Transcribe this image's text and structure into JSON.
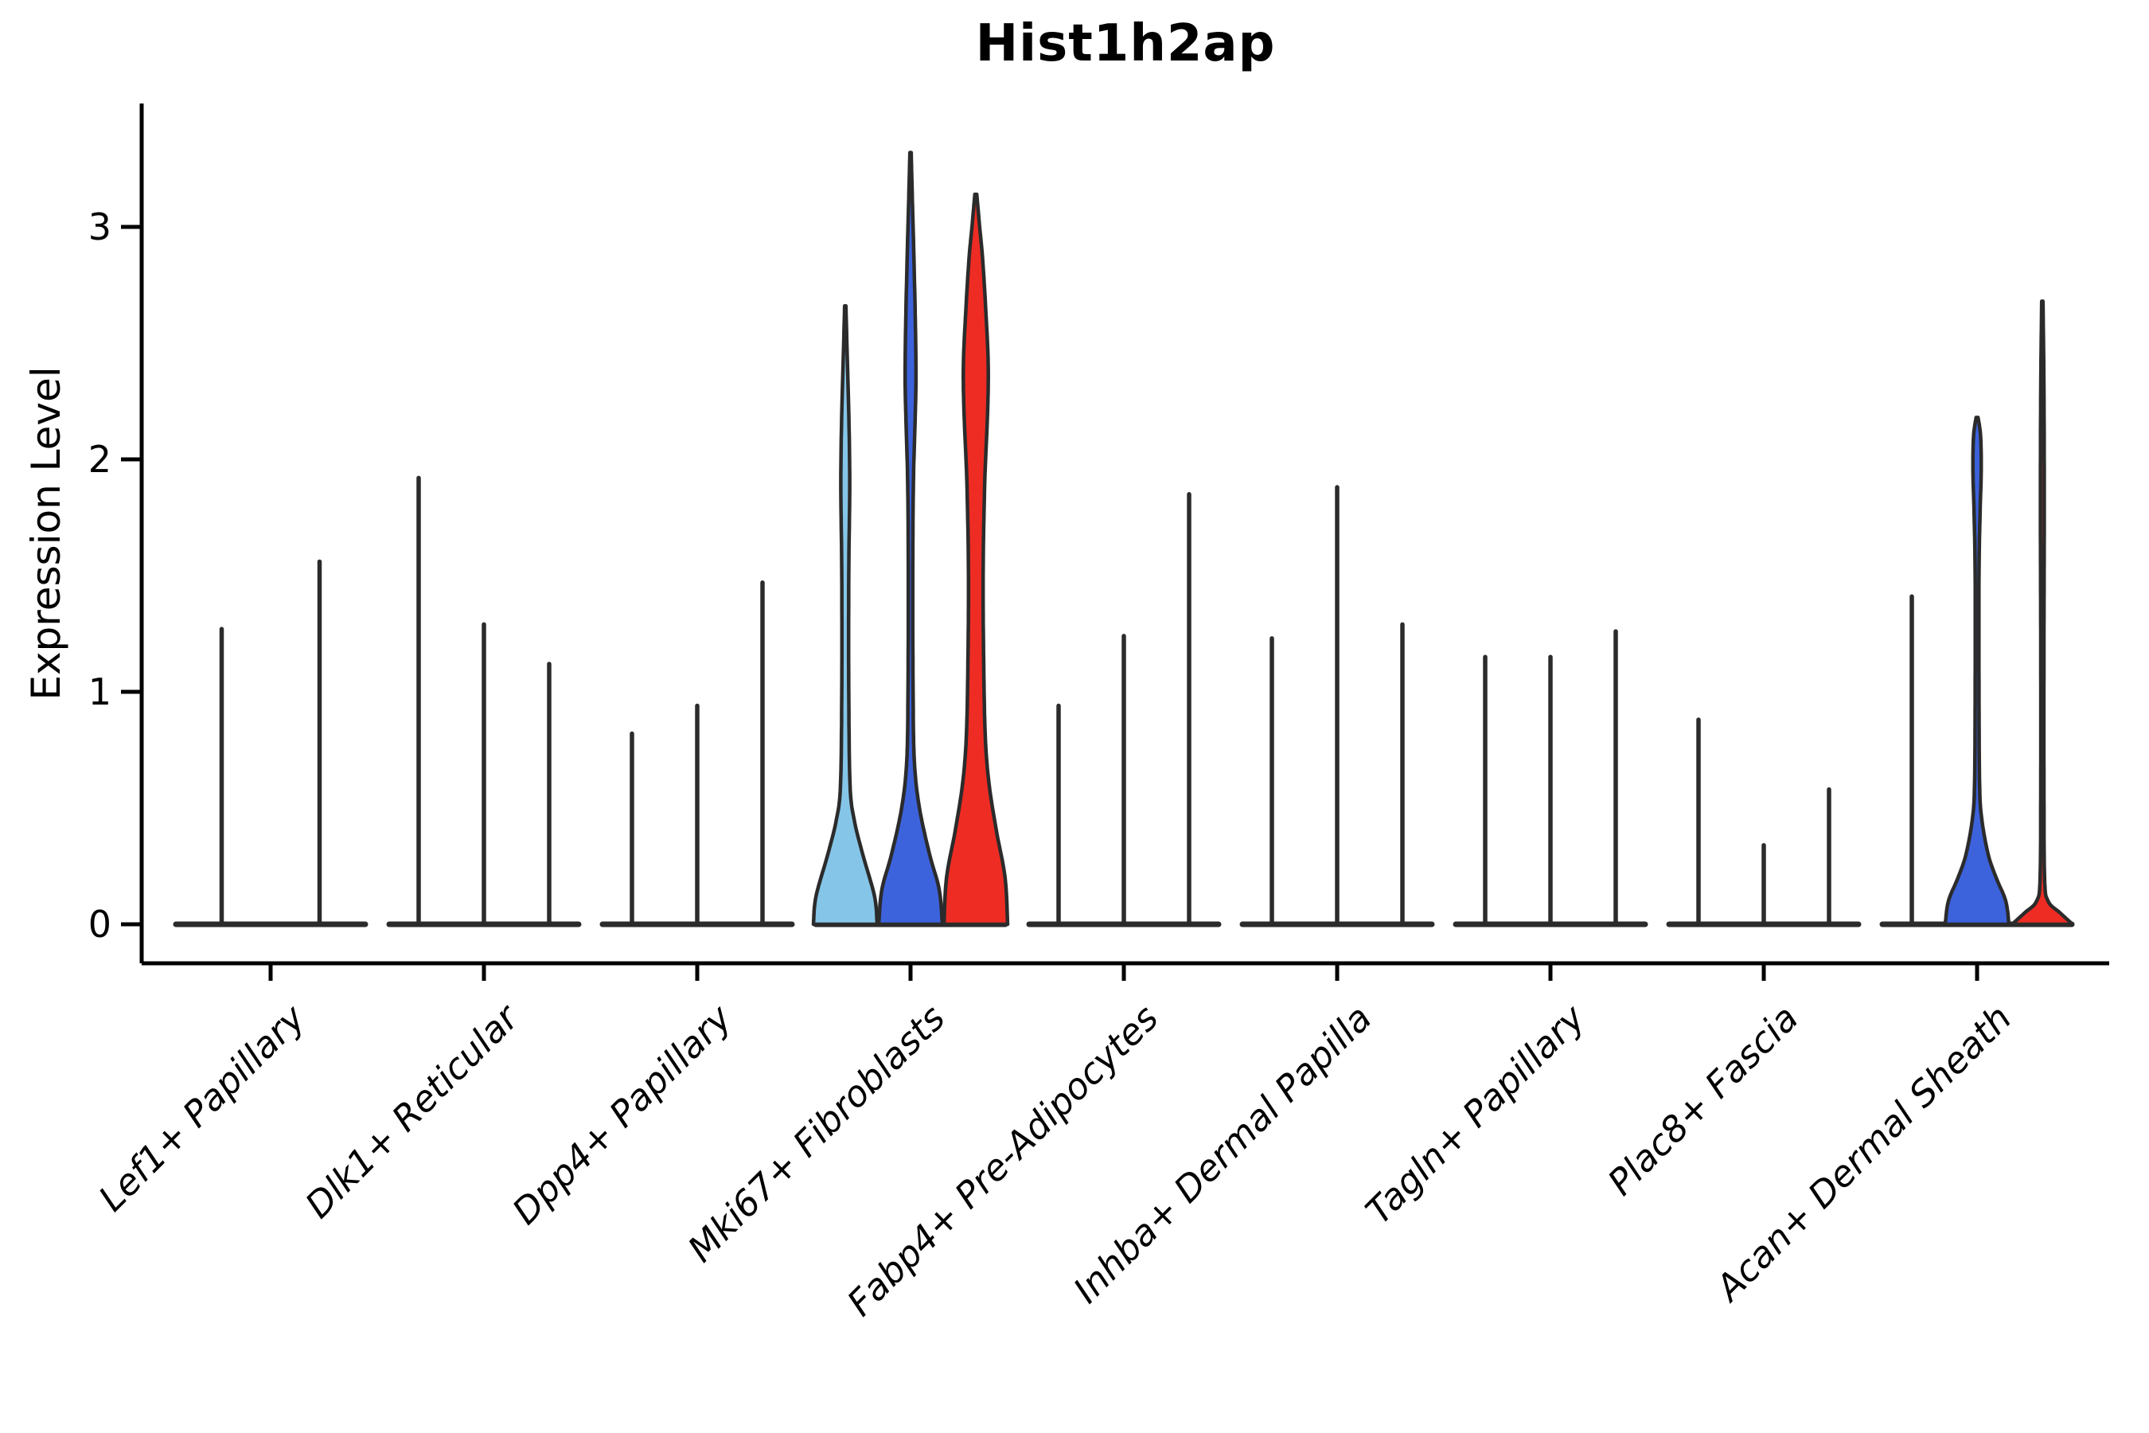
{
  "title": {
    "text": "Hist1h2ap"
  },
  "axes": {
    "y": {
      "label": "Expression Level",
      "tick_labels": [
        "0",
        "1",
        "2",
        "3"
      ],
      "tick_values": [
        0,
        1,
        2,
        3
      ]
    },
    "x": {
      "categories": [
        "Lef1+ Papillary",
        "Dlk1+ Reticular",
        "Dpp4+ Papillary",
        "Mki67+ Fibroblasts",
        "Fabp4+ Pre-Adipocytes",
        "Inhba+ Dermal Papilla",
        "Tagln+ Papillary",
        "Plac8+ Fascia",
        "Acan+ Dermal Sheath"
      ]
    }
  },
  "style": {
    "background": "#ffffff",
    "spine_color": "#000000",
    "outline_color": "#2b2b2b",
    "palette": {
      "light_blue": "#85C6E8",
      "blue": "#3C63DC",
      "red": "#EE2C24"
    }
  },
  "chart_data": {
    "type": "violin",
    "title": "Hist1h2ap",
    "xlabel": "",
    "ylabel": "Expression Level",
    "ylim": [
      -0.15,
      3.6
    ],
    "yticks": [
      0,
      1,
      2,
      3
    ],
    "grid": false,
    "legend": "none",
    "categories": [
      "Lef1+ Papillary",
      "Dlk1+ Reticular",
      "Dpp4+ Papillary",
      "Mki67+ Fibroblasts",
      "Fabp4+ Pre-Adipocytes",
      "Inhba+ Dermal Papilla",
      "Tagln+ Papillary",
      "Plac8+ Fascia",
      "Acan+ Dermal Sheath"
    ],
    "groups": [
      {
        "category": "Lef1+ Papillary",
        "violins": [
          {
            "kind": "stem",
            "max": 1.27
          },
          {
            "kind": "stem",
            "max": 1.56
          }
        ]
      },
      {
        "category": "Dlk1+ Reticular",
        "violins": [
          {
            "kind": "stem",
            "max": 1.92
          },
          {
            "kind": "stem",
            "max": 1.29
          },
          {
            "kind": "stem",
            "max": 1.12
          }
        ]
      },
      {
        "category": "Dpp4+ Papillary",
        "violins": [
          {
            "kind": "stem",
            "max": 0.82
          },
          {
            "kind": "stem",
            "max": 0.94
          },
          {
            "kind": "stem",
            "max": 1.47
          }
        ]
      },
      {
        "category": "Mki67+ Fibroblasts",
        "violins": [
          {
            "kind": "violin",
            "max": 2.66,
            "fill": "#85C6E8",
            "profile": [
              [
                0,
                1.0
              ],
              [
                0.12,
                0.92
              ],
              [
                0.3,
                0.55
              ],
              [
                0.45,
                0.28
              ],
              [
                0.6,
                0.15
              ],
              [
                1.0,
                0.11
              ],
              [
                1.5,
                0.11
              ],
              [
                1.9,
                0.14
              ],
              [
                2.2,
                0.11
              ],
              [
                2.45,
                0.06
              ],
              [
                2.66,
                0.02
              ]
            ]
          },
          {
            "kind": "violin",
            "max": 3.32,
            "fill": "#3C63DC",
            "profile": [
              [
                0,
                1.0
              ],
              [
                0.15,
                0.9
              ],
              [
                0.3,
                0.6
              ],
              [
                0.5,
                0.28
              ],
              [
                0.7,
                0.12
              ],
              [
                1.0,
                0.08
              ],
              [
                1.5,
                0.07
              ],
              [
                1.9,
                0.09
              ],
              [
                2.15,
                0.14
              ],
              [
                2.35,
                0.17
              ],
              [
                2.6,
                0.15
              ],
              [
                2.9,
                0.1
              ],
              [
                3.1,
                0.06
              ],
              [
                3.32,
                0.02
              ]
            ]
          },
          {
            "kind": "violin",
            "max": 3.14,
            "fill": "#EE2C24",
            "profile": [
              [
                0,
                1.0
              ],
              [
                0.2,
                0.92
              ],
              [
                0.4,
                0.65
              ],
              [
                0.6,
                0.42
              ],
              [
                0.8,
                0.3
              ],
              [
                1.1,
                0.25
              ],
              [
                1.5,
                0.23
              ],
              [
                1.9,
                0.28
              ],
              [
                2.2,
                0.37
              ],
              [
                2.4,
                0.39
              ],
              [
                2.6,
                0.33
              ],
              [
                2.85,
                0.22
              ],
              [
                3.0,
                0.12
              ],
              [
                3.14,
                0.03
              ]
            ]
          }
        ]
      },
      {
        "category": "Fabp4+ Pre-Adipocytes",
        "violins": [
          {
            "kind": "stem",
            "max": 0.94
          },
          {
            "kind": "stem",
            "max": 1.24
          },
          {
            "kind": "stem",
            "max": 1.85
          }
        ]
      },
      {
        "category": "Inhba+ Dermal Papilla",
        "violins": [
          {
            "kind": "stem",
            "max": 1.23
          },
          {
            "kind": "stem",
            "max": 1.88
          },
          {
            "kind": "stem",
            "max": 1.29
          }
        ]
      },
      {
        "category": "Tagln+ Papillary",
        "violins": [
          {
            "kind": "stem",
            "max": 1.15
          },
          {
            "kind": "stem",
            "max": 1.15
          },
          {
            "kind": "stem",
            "max": 1.26
          }
        ]
      },
      {
        "category": "Plac8+ Fascia",
        "violins": [
          {
            "kind": "stem",
            "max": 0.88
          },
          {
            "kind": "stem",
            "max": 0.34
          },
          {
            "kind": "stem",
            "max": 0.58
          }
        ]
      },
      {
        "category": "Acan+ Dermal Sheath",
        "violins": [
          {
            "kind": "stem",
            "max": 1.41
          },
          {
            "kind": "violin",
            "max": 2.18,
            "fill": "#3C63DC",
            "profile": [
              [
                0,
                1.0
              ],
              [
                0.1,
                0.9
              ],
              [
                0.2,
                0.6
              ],
              [
                0.3,
                0.35
              ],
              [
                0.45,
                0.15
              ],
              [
                0.6,
                0.08
              ],
              [
                1.0,
                0.06
              ],
              [
                1.5,
                0.06
              ],
              [
                1.75,
                0.09
              ],
              [
                1.95,
                0.13
              ],
              [
                2.1,
                0.11
              ],
              [
                2.18,
                0.03
              ]
            ]
          },
          {
            "kind": "violin",
            "max": 2.68,
            "fill": "#EE2C24",
            "profile": [
              [
                0,
                0.95
              ],
              [
                0.05,
                0.55
              ],
              [
                0.1,
                0.18
              ],
              [
                0.2,
                0.07
              ],
              [
                0.6,
                0.05
              ],
              [
                1.2,
                0.05
              ],
              [
                1.8,
                0.06
              ],
              [
                2.3,
                0.05
              ],
              [
                2.68,
                0.02
              ]
            ]
          }
        ]
      }
    ]
  }
}
